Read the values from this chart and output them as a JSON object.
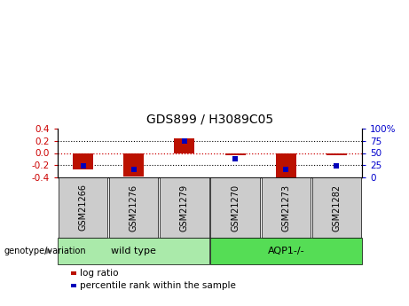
{
  "title": "GDS899 / H3089C05",
  "samples": [
    "GSM21266",
    "GSM21276",
    "GSM21279",
    "GSM21270",
    "GSM21273",
    "GSM21282"
  ],
  "log_ratios": [
    -0.27,
    -0.38,
    0.24,
    -0.04,
    -0.43,
    -0.03
  ],
  "percentile_ranks": [
    -0.205,
    -0.27,
    0.19,
    -0.1,
    -0.265,
    -0.205
  ],
  "ylim": [
    -0.4,
    0.4
  ],
  "yticks_left": [
    -0.4,
    -0.2,
    0.0,
    0.2,
    0.4
  ],
  "groups": [
    {
      "label": "wild type",
      "indices": [
        0,
        1,
        2
      ],
      "color": "#aaeaaa"
    },
    {
      "label": "AQP1-/-",
      "indices": [
        3,
        4,
        5
      ],
      "color": "#55dd55"
    }
  ],
  "bar_color": "#bb1100",
  "dot_color": "#0000bb",
  "zero_line_color": "#cc0000",
  "sample_box_color": "#cccccc",
  "bar_width": 0.4,
  "legend_items": [
    {
      "label": "log ratio",
      "color": "#bb1100"
    },
    {
      "label": "percentile rank within the sample",
      "color": "#0000bb"
    }
  ],
  "genotype_label": "genotype/variation",
  "title_fontsize": 10,
  "tick_fontsize": 7.5,
  "label_fontsize": 7,
  "group_fontsize": 8,
  "legend_fontsize": 7.5
}
